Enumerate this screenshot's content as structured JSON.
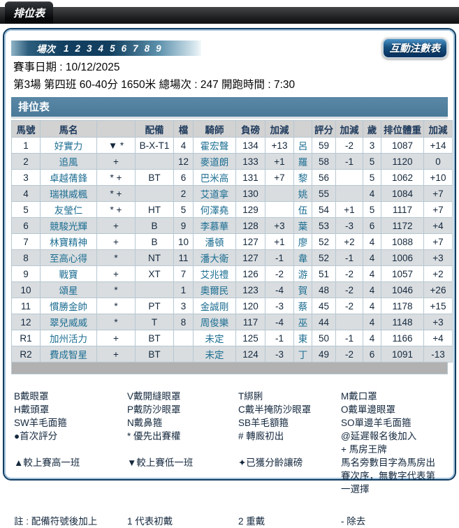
{
  "page": {
    "tab_title": "排位表"
  },
  "session_bar": {
    "label": "場次",
    "races": [
      "1",
      "2",
      "3",
      "4",
      "5",
      "6",
      "7",
      "8",
      "9"
    ]
  },
  "actions": {
    "interactive_bet_table": "互動注數表"
  },
  "race_info": {
    "date_line": "賽事日期 : 10/12/2025",
    "detail_line": "第3場 第四班 60-40分 1650米 總場次 : 247 開跑時間 : 7:30"
  },
  "table": {
    "title": "排位表",
    "headers": [
      "馬號",
      "馬名",
      "",
      "配備",
      "檔",
      "騎師",
      "負磅",
      "加減",
      "",
      "評分",
      "加減",
      "歲",
      "排位體重",
      "加減"
    ],
    "column_keys": [
      "no",
      "name",
      "symbols",
      "gear",
      "draw",
      "jockey",
      "weight",
      "weight-change",
      "trainer",
      "rating",
      "rating-change",
      "age",
      "declared-weight",
      "declared-change"
    ],
    "rows": [
      [
        "1",
        "好實力",
        "▼ *",
        "B-X-T1",
        "4",
        "霍宏聲",
        "134",
        "+13",
        "呂",
        "59",
        "-2",
        "3",
        "1087",
        "+14"
      ],
      [
        "2",
        "追風",
        "+",
        "",
        "12",
        "麥道朗",
        "133",
        "+1",
        "羅",
        "58",
        "-1",
        "5",
        "1120",
        "0"
      ],
      [
        "3",
        "卓越蒨鋒",
        "* +",
        "BT",
        "6",
        "巴米高",
        "131",
        "+7",
        "黎",
        "56",
        "",
        "5",
        "1062",
        "+10"
      ],
      [
        "4",
        "瑞祺威楓",
        "* +",
        "",
        "2",
        "艾道拿",
        "130",
        "",
        "姚",
        "55",
        "",
        "4",
        "1084",
        "+7"
      ],
      [
        "5",
        "友瑩仁",
        "* +",
        "HT",
        "5",
        "何澤堯",
        "129",
        "",
        "伍",
        "54",
        "+1",
        "5",
        "1117",
        "+7"
      ],
      [
        "6",
        "競駿光輝",
        "+",
        "B",
        "9",
        "李慕華",
        "128",
        "+3",
        "葉",
        "53",
        "-3",
        "6",
        "1172",
        "+4"
      ],
      [
        "7",
        "林寶精神",
        "+",
        "B",
        "10",
        "潘頓",
        "127",
        "+1",
        "廖",
        "52",
        "+2",
        "4",
        "1088",
        "+7"
      ],
      [
        "8",
        "至高心得",
        "*",
        "NT",
        "11",
        "潘大衛",
        "127",
        "-1",
        "韋",
        "52",
        "-1",
        "4",
        "1006",
        "+3"
      ],
      [
        "9",
        "戰寶",
        "+",
        "XT",
        "7",
        "艾兆禮",
        "126",
        "-2",
        "游",
        "51",
        "-2",
        "4",
        "1057",
        "+2"
      ],
      [
        "10",
        "頌星",
        "*",
        "",
        "1",
        "奧爾民",
        "123",
        "-4",
        "賀",
        "48",
        "-2",
        "4",
        "1046",
        "+26"
      ],
      [
        "11",
        "慣勝金帥",
        "*",
        "PT",
        "3",
        "金誠剛",
        "120",
        "-3",
        "蔡",
        "45",
        "-2",
        "4",
        "1178",
        "+15"
      ],
      [
        "12",
        "翠兒威威",
        "*",
        "T",
        "8",
        "周俊樂",
        "117",
        "-4",
        "巫",
        "44",
        "",
        "4",
        "1148",
        "+3"
      ],
      [
        "R1",
        "加州活力",
        "+",
        "BT",
        "",
        "未定",
        "125",
        "-1",
        "東",
        "50",
        "-1",
        "4",
        "1166",
        "+4"
      ],
      [
        "R2",
        "費成智星",
        "+",
        "BT",
        "",
        "未定",
        "124",
        "-3",
        "丁",
        "49",
        "-2",
        "6",
        "1091",
        "-13"
      ]
    ]
  },
  "legend": {
    "rows": [
      [
        "B戴眼罩",
        "V戴開縫眼罩",
        "T綁脷",
        "M戴口罩"
      ],
      [
        "H戴頭罩",
        "P戴防沙眼罩",
        "C戴半掩防沙眼罩",
        "O戴單邊眼罩"
      ],
      [
        "SW羊毛面箍",
        "N戴鼻箍",
        "SB羊毛額箍",
        "SO單邊羊毛面箍"
      ],
      [
        "●首次評分",
        "* 優先出賽權",
        "# 轉廄初出",
        "@延遲報名後加入"
      ],
      [
        "",
        "",
        "",
        "+ 馬房王牌"
      ],
      [
        "▲較上賽高一班",
        "▼較上賽低一班",
        "✦已獲分齡讓磅",
        "馬名旁數目字為馬房出賽次序，無數字代表第一選擇"
      ],
      [
        "註 : 配備符號後加上",
        "1 代表初戴",
        "2 重戴",
        "- 除去"
      ]
    ]
  },
  "colors": {
    "panel_border": "#143e62",
    "table_title_bg": "#4a7a99",
    "header_bg": "#d2d2d2",
    "alt_row_bg": "#d9dde0",
    "link_text": "#1d6e92",
    "button_bg": "#0a3462"
  }
}
